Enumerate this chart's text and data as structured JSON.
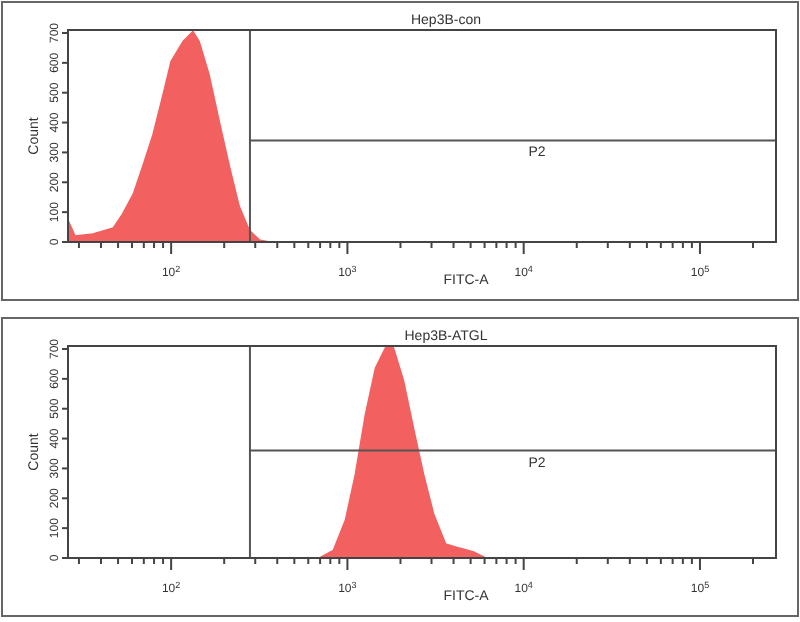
{
  "chart_data": [
    {
      "type": "area",
      "title": "Hep3B-con",
      "xlabel": "FITC-A",
      "ylabel": "Count",
      "log": "x",
      "grid": false,
      "x": [
        26,
        28.5,
        36,
        47,
        53,
        61,
        69,
        79,
        90,
        100,
        117,
        133,
        144,
        164,
        187,
        214,
        243,
        277,
        316,
        360
      ],
      "series": [
        {
          "color": "#f26060",
          "values": [
            73,
            20,
            27,
            47,
            93,
            160,
            253,
            360,
            493,
            605,
            672,
            705,
            672,
            560,
            406,
            253,
            120,
            40,
            7,
            0
          ]
        }
      ],
      "xlim": [
        26,
        270000
      ],
      "ylim": [
        0,
        710
      ],
      "xticks": [
        {
          "value": 30,
          "label": null
        },
        {
          "value": 40,
          "label": null
        },
        {
          "value": 50,
          "label": null
        },
        {
          "value": 60,
          "label": null
        },
        {
          "value": 70,
          "label": null
        },
        {
          "value": 80,
          "label": null
        },
        {
          "value": 90,
          "label": null
        },
        {
          "value": 100,
          "label": "10$^{2}$"
        },
        {
          "value": 200,
          "label": null
        },
        {
          "value": 300,
          "label": null
        },
        {
          "value": 400,
          "label": null
        },
        {
          "value": 500,
          "label": null
        },
        {
          "value": 600,
          "label": null
        },
        {
          "value": 700,
          "label": null
        },
        {
          "value": 800,
          "label": null
        },
        {
          "value": 900,
          "label": null
        },
        {
          "value": 1000,
          "label": "10$^{3}$"
        },
        {
          "value": 2000,
          "label": null
        },
        {
          "value": 3000,
          "label": null
        },
        {
          "value": 4000,
          "label": null
        },
        {
          "value": 5000,
          "label": null
        },
        {
          "value": 6000,
          "label": null
        },
        {
          "value": 7000,
          "label": null
        },
        {
          "value": 8000,
          "label": null
        },
        {
          "value": 9000,
          "label": null
        },
        {
          "value": 10000,
          "label": "10$^{4}$"
        },
        {
          "value": 20000,
          "label": null
        },
        {
          "value": 30000,
          "label": null
        },
        {
          "value": 40000,
          "label": null
        },
        {
          "value": 50000,
          "label": null
        },
        {
          "value": 60000,
          "label": null
        },
        {
          "value": 70000,
          "label": null
        },
        {
          "value": 80000,
          "label": null
        },
        {
          "value": 90000,
          "label": null
        },
        {
          "value": 100000,
          "label": "10$^{5}$"
        },
        {
          "value": 200000,
          "label": null
        }
      ],
      "yticks": [
        0,
        100,
        200,
        300,
        400,
        500,
        600,
        700
      ],
      "ref_lines": [
        {
          "axis": "x",
          "value": 280,
          "color": "#555555"
        },
        {
          "axis": "y",
          "value": 340,
          "label": "P2",
          "color": "#555555"
        }
      ]
    },
    {
      "type": "area",
      "title": "Hep3B-ATGL",
      "xlabel": "FITC-A",
      "ylabel": "Count",
      "log": "x",
      "grid": false,
      "x": [
        694,
        832,
        975,
        1110,
        1265,
        1443,
        1644,
        1824,
        2080,
        2371,
        2704,
        3083,
        3606,
        4325,
        5200,
        6081
      ],
      "series": [
        {
          "color": "#f26060",
          "values": [
            0,
            25,
            127,
            280,
            480,
            636,
            704,
            704,
            594,
            434,
            280,
            147,
            47,
            33,
            20,
            0
          ]
        }
      ],
      "xlim": [
        26,
        270000
      ],
      "ylim": [
        0,
        710
      ],
      "xticks": [
        {
          "value": 30,
          "label": null
        },
        {
          "value": 40,
          "label": null
        },
        {
          "value": 50,
          "label": null
        },
        {
          "value": 60,
          "label": null
        },
        {
          "value": 70,
          "label": null
        },
        {
          "value": 80,
          "label": null
        },
        {
          "value": 90,
          "label": null
        },
        {
          "value": 100,
          "label": "10$^{2}$"
        },
        {
          "value": 200,
          "label": null
        },
        {
          "value": 300,
          "label": null
        },
        {
          "value": 400,
          "label": null
        },
        {
          "value": 500,
          "label": null
        },
        {
          "value": 600,
          "label": null
        },
        {
          "value": 700,
          "label": null
        },
        {
          "value": 800,
          "label": null
        },
        {
          "value": 900,
          "label": null
        },
        {
          "value": 1000,
          "label": "10$^{3}$"
        },
        {
          "value": 2000,
          "label": null
        },
        {
          "value": 3000,
          "label": null
        },
        {
          "value": 4000,
          "label": null
        },
        {
          "value": 5000,
          "label": null
        },
        {
          "value": 6000,
          "label": null
        },
        {
          "value": 7000,
          "label": null
        },
        {
          "value": 8000,
          "label": null
        },
        {
          "value": 9000,
          "label": null
        },
        {
          "value": 10000,
          "label": "10$^{4}$"
        },
        {
          "value": 20000,
          "label": null
        },
        {
          "value": 30000,
          "label": null
        },
        {
          "value": 40000,
          "label": null
        },
        {
          "value": 50000,
          "label": null
        },
        {
          "value": 60000,
          "label": null
        },
        {
          "value": 70000,
          "label": null
        },
        {
          "value": 80000,
          "label": null
        },
        {
          "value": 90000,
          "label": null
        },
        {
          "value": 100000,
          "label": "10$^{5}$"
        },
        {
          "value": 200000,
          "label": null
        }
      ],
      "yticks": [
        0,
        100,
        200,
        300,
        400,
        500,
        600,
        700
      ],
      "ref_lines": [
        {
          "axis": "x",
          "value": 280,
          "color": "#555555"
        },
        {
          "axis": "y",
          "value": 360,
          "label": "P2",
          "color": "#555555"
        }
      ]
    }
  ]
}
